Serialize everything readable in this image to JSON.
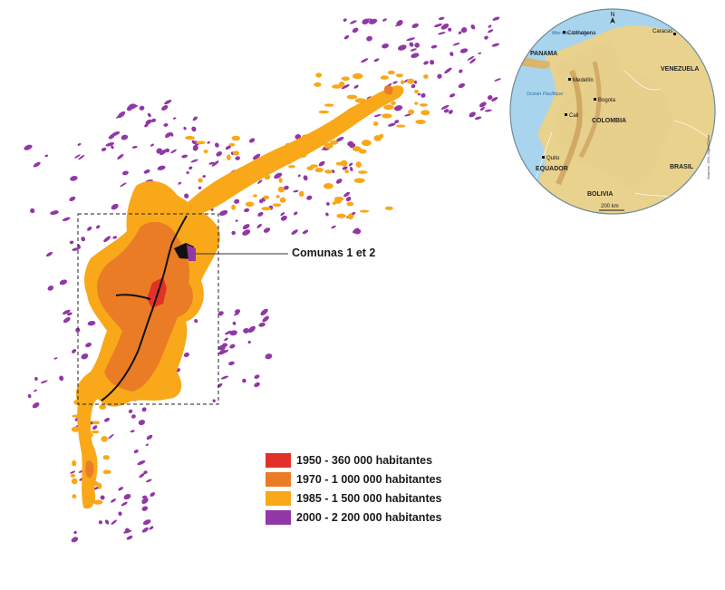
{
  "colors": {
    "y1950": "#e03228",
    "y1970": "#ea7c25",
    "y1985": "#f8a818",
    "y2000": "#9237a6",
    "sea": "#a9d4ee",
    "land_low": "#e8d28e",
    "land_mid": "#d9b66a",
    "land_high": "#c08a43",
    "colombia": "#e7cf8c",
    "rail": "#111111"
  },
  "legend": {
    "items": [
      {
        "label": "1950 - 360 000 habitantes",
        "color": "#e03228"
      },
      {
        "label": "1970 - 1 000 000 habitantes",
        "color": "#ea7c25"
      },
      {
        "label": "1985 - 1 500 000 habitantes",
        "color": "#f8a818"
      },
      {
        "label": "2000 - 2 200 000 habitantes",
        "color": "#9237a6"
      }
    ]
  },
  "callout": {
    "label": "Comunas 1 et 2"
  },
  "inset": {
    "north": "N",
    "sea_caribe": "Mer des Caraïbes",
    "ocean_pacifique": "Océan Pacifique",
    "countries": {
      "panama": "PANAMA",
      "venezuela": "VENEZUELA",
      "colombia": "COLOMBIA",
      "equador": "EQUADOR",
      "brasil": "BRASIL",
      "bolivia": "BOLIVIA"
    },
    "cities": {
      "cartagena": "Carthagena",
      "caracas": "Caracas",
      "medellin": "Medellín",
      "bogota": "Bogota",
      "cali": "Cali",
      "quito": "Quito"
    },
    "scale": "200 km",
    "credit": "Sources : IGN, DigitalGlobe"
  }
}
